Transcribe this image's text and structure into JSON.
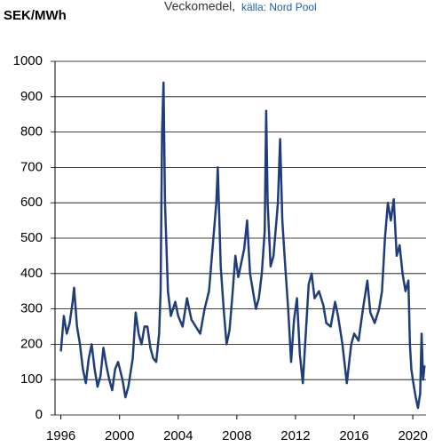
{
  "chart_data": {
    "type": "line",
    "y_label": "SEK/MWh",
    "subtitle": "Veckomedel,",
    "source": "källa: Nord Pool",
    "color": "#1f3d7a",
    "grid": true,
    "xlim": [
      1995.6,
      2020.9
    ],
    "xticks": [
      1996,
      2000,
      2004,
      2008,
      2012,
      2016,
      2020
    ],
    "ylim": [
      0,
      1000
    ],
    "yticks": [
      0,
      100,
      200,
      300,
      400,
      500,
      600,
      700,
      800,
      900,
      1000
    ],
    "x": [
      1996.0,
      1996.2,
      1996.4,
      1996.6,
      1996.8,
      1996.9,
      1997.1,
      1997.3,
      1997.5,
      1997.7,
      1997.9,
      1998.1,
      1998.3,
      1998.5,
      1998.7,
      1998.9,
      1999.1,
      1999.3,
      1999.5,
      1999.7,
      1999.9,
      2000.2,
      2000.4,
      2000.6,
      2000.9,
      2001.1,
      2001.3,
      2001.5,
      2001.7,
      2001.9,
      2002.1,
      2002.3,
      2002.5,
      2002.7,
      2002.8,
      2002.9,
      2003.0,
      2003.1,
      2003.3,
      2003.5,
      2003.8,
      2004.0,
      2004.3,
      2004.6,
      2004.9,
      2005.2,
      2005.5,
      2005.8,
      2006.1,
      2006.4,
      2006.6,
      2006.7,
      2006.9,
      2007.1,
      2007.3,
      2007.5,
      2007.7,
      2007.9,
      2008.1,
      2008.3,
      2008.5,
      2008.7,
      2008.9,
      2009.1,
      2009.3,
      2009.5,
      2009.7,
      2009.9,
      2010.0,
      2010.1,
      2010.3,
      2010.5,
      2010.8,
      2010.95,
      2011.1,
      2011.3,
      2011.5,
      2011.7,
      2011.9,
      2012.1,
      2012.3,
      2012.5,
      2012.7,
      2012.9,
      2013.1,
      2013.3,
      2013.6,
      2013.9,
      2014.1,
      2014.4,
      2014.7,
      2014.9,
      2015.2,
      2015.5,
      2015.8,
      2016.0,
      2016.3,
      2016.6,
      2016.9,
      2017.1,
      2017.4,
      2017.7,
      2017.9,
      2018.1,
      2018.3,
      2018.5,
      2018.7,
      2018.9,
      2019.1,
      2019.3,
      2019.5,
      2019.7,
      2019.8,
      2019.9,
      2020.0,
      2020.2,
      2020.35,
      2020.5,
      2020.6,
      2020.7,
      2020.8
    ],
    "values": [
      180,
      280,
      230,
      260,
      320,
      360,
      250,
      200,
      130,
      90,
      160,
      200,
      130,
      80,
      110,
      190,
      140,
      100,
      70,
      130,
      150,
      100,
      50,
      80,
      160,
      290,
      230,
      200,
      250,
      250,
      190,
      160,
      150,
      230,
      350,
      800,
      940,
      600,
      350,
      280,
      320,
      280,
      250,
      330,
      270,
      250,
      230,
      300,
      350,
      500,
      600,
      700,
      420,
      300,
      200,
      240,
      340,
      450,
      390,
      430,
      470,
      550,
      400,
      350,
      300,
      330,
      400,
      520,
      860,
      600,
      420,
      450,
      600,
      780,
      550,
      420,
      300,
      150,
      270,
      330,
      170,
      90,
      230,
      370,
      400,
      330,
      350,
      310,
      260,
      250,
      320,
      280,
      200,
      90,
      200,
      230,
      210,
      300,
      380,
      290,
      260,
      300,
      350,
      500,
      600,
      550,
      610,
      450,
      480,
      400,
      350,
      380,
      200,
      130,
      100,
      50,
      20,
      60,
      230,
      100,
      140
    ]
  }
}
